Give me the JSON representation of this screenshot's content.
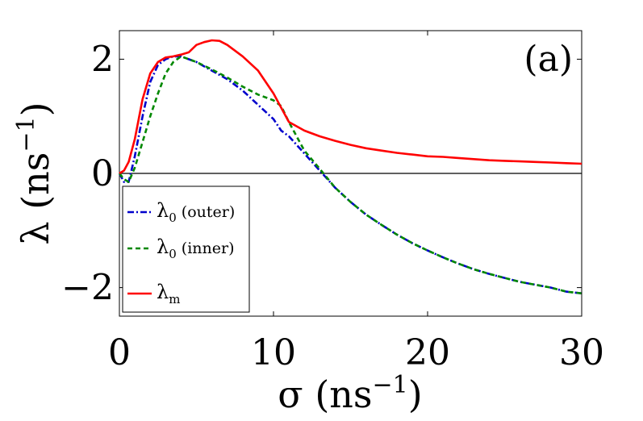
{
  "chart_data": {
    "type": "line",
    "panel_label": "(a)",
    "xlabel": {
      "main": "σ (ns",
      "sup": "−1",
      "close": ")"
    },
    "ylabel": {
      "main": "λ (ns",
      "sup": "−1",
      "close": ")"
    },
    "xlim": [
      0,
      30
    ],
    "ylim": [
      -2.5,
      2.5
    ],
    "x_ticks": [
      0,
      10,
      20,
      30
    ],
    "x_tick_labels": [
      "0",
      "10",
      "20",
      "30"
    ],
    "y_ticks": [
      -2,
      0,
      2
    ],
    "y_tick_labels": [
      "−2",
      "0",
      "2"
    ],
    "zero_line": true,
    "grid": false,
    "legend_position": "bottom-left",
    "series": [
      {
        "name": "outer",
        "legend_main": "λ",
        "legend_sub": "0",
        "legend_suffix": " (outer)",
        "color": "#0000cc",
        "dash": "dashdot",
        "x": [
          0,
          0.3,
          0.6,
          1,
          1.5,
          2,
          2.5,
          3,
          3.5,
          4,
          4.5,
          5,
          6,
          7,
          8,
          9,
          10,
          10.5,
          11,
          12,
          13,
          14,
          15,
          16,
          17,
          18,
          19,
          20,
          21,
          22,
          23,
          24,
          25,
          26,
          27,
          28,
          29,
          30
        ],
        "y": [
          0.0,
          -0.15,
          -0.15,
          0.3,
          1.0,
          1.6,
          1.9,
          2.0,
          2.05,
          2.05,
          2.0,
          1.95,
          1.8,
          1.65,
          1.45,
          1.2,
          0.95,
          0.75,
          0.65,
          0.35,
          0.05,
          -0.25,
          -0.5,
          -0.72,
          -0.9,
          -1.07,
          -1.22,
          -1.35,
          -1.47,
          -1.58,
          -1.68,
          -1.76,
          -1.83,
          -1.9,
          -1.95,
          -2.0,
          -2.07,
          -2.1
        ]
      },
      {
        "name": "inner",
        "legend_main": "λ",
        "legend_sub": "0",
        "legend_suffix": " (inner)",
        "color": "#008800",
        "dash": "dashed",
        "x": [
          0,
          0.3,
          0.6,
          1,
          1.5,
          2,
          2.5,
          3,
          3.5,
          4,
          4.5,
          5,
          6,
          7,
          8,
          9,
          10,
          10.5,
          11,
          12,
          13,
          14,
          15,
          16,
          17,
          18,
          19,
          20,
          21,
          22,
          23,
          24,
          25,
          26,
          27,
          28,
          29,
          30
        ],
        "y": [
          0.0,
          -0.1,
          -0.15,
          0.1,
          0.55,
          1.0,
          1.4,
          1.75,
          1.95,
          2.05,
          2.0,
          1.95,
          1.82,
          1.68,
          1.52,
          1.38,
          1.28,
          1.18,
          0.9,
          0.4,
          0.08,
          -0.25,
          -0.5,
          -0.72,
          -0.9,
          -1.07,
          -1.22,
          -1.35,
          -1.47,
          -1.58,
          -1.68,
          -1.76,
          -1.83,
          -1.9,
          -1.95,
          -2.0,
          -2.07,
          -2.1
        ]
      },
      {
        "name": "m",
        "legend_main": "λ",
        "legend_sub": "m",
        "legend_suffix": "",
        "color": "#ff0000",
        "dash": "solid",
        "x": [
          0,
          0.3,
          0.6,
          1,
          1.5,
          2,
          2.5,
          3,
          3.5,
          4,
          4.5,
          5,
          5.5,
          6,
          6.5,
          7,
          8,
          9,
          10,
          11,
          12,
          13,
          14,
          15,
          16,
          17,
          18,
          19,
          20,
          21,
          22,
          23,
          24,
          25,
          26,
          27,
          28,
          29,
          30
        ],
        "y": [
          0.0,
          0.05,
          0.2,
          0.6,
          1.3,
          1.75,
          1.95,
          2.03,
          2.05,
          2.08,
          2.12,
          2.25,
          2.3,
          2.33,
          2.32,
          2.25,
          2.05,
          1.8,
          1.4,
          0.9,
          0.75,
          0.65,
          0.57,
          0.5,
          0.44,
          0.4,
          0.36,
          0.33,
          0.3,
          0.29,
          0.27,
          0.25,
          0.23,
          0.22,
          0.21,
          0.2,
          0.19,
          0.18,
          0.17
        ]
      }
    ]
  }
}
